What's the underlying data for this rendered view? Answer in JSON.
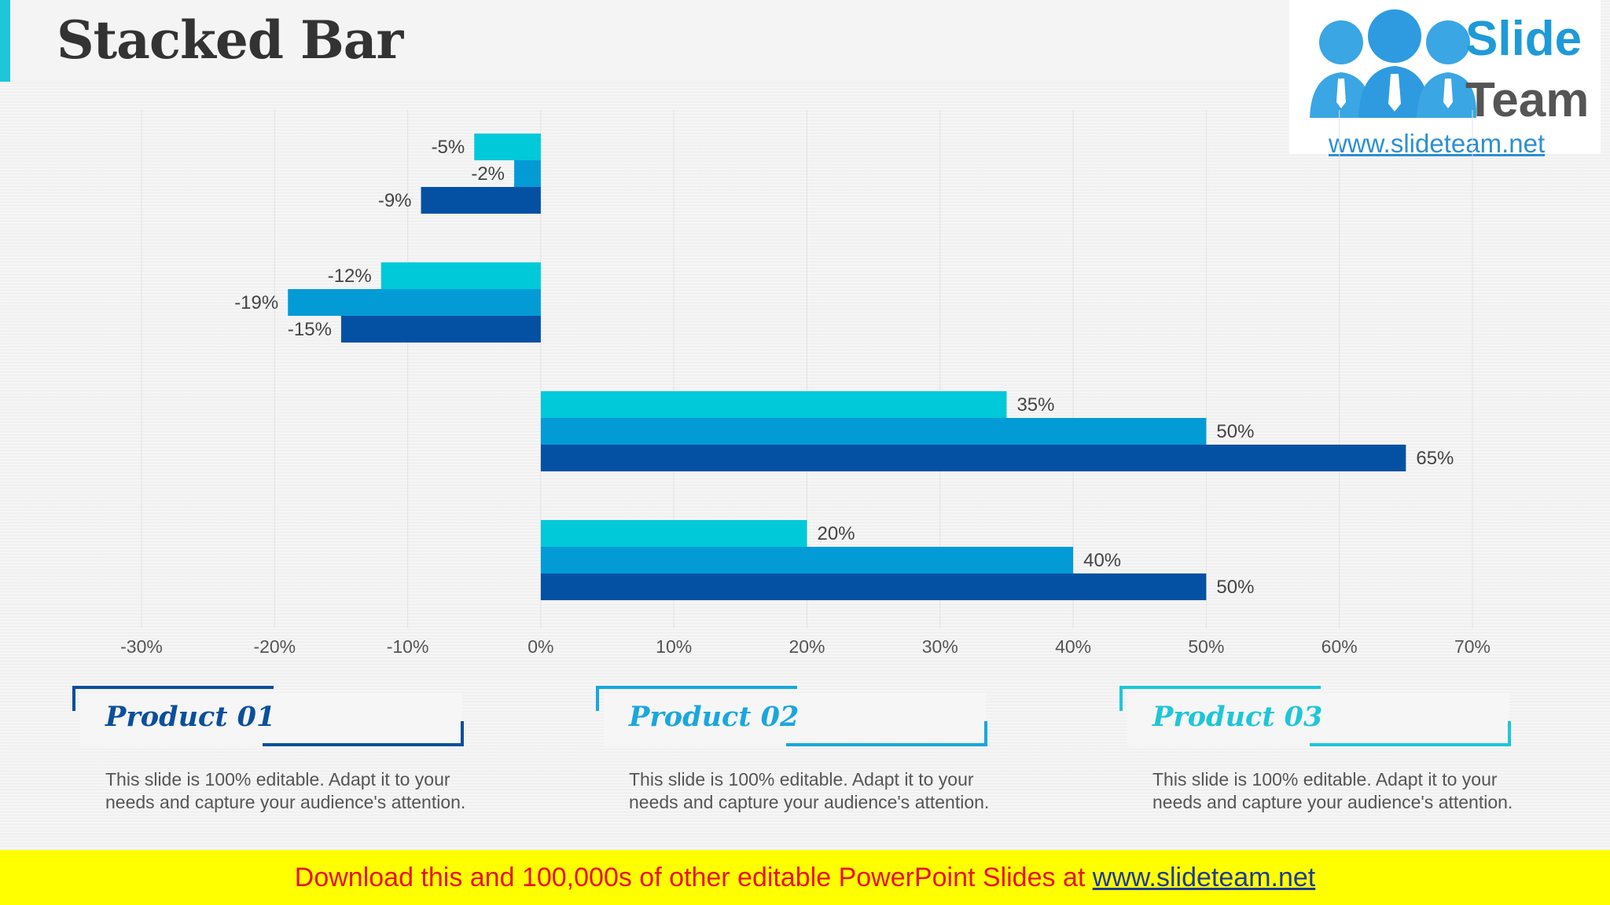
{
  "title": "Stacked Bar",
  "logo": {
    "word1": "Slide",
    "word2": "Team",
    "url": "www.slideteam.net"
  },
  "chart_data": {
    "type": "bar",
    "orientation": "horizontal",
    "categories": [
      "",
      "",
      "",
      ""
    ],
    "series": [
      {
        "values": [
          -5,
          -12,
          35,
          20
        ],
        "color": "#00c9d9",
        "labels": [
          "-5%",
          "-12%",
          "35%",
          "20%"
        ]
      },
      {
        "values": [
          -2,
          -19,
          50,
          40
        ],
        "color": "#039bd6",
        "labels": [
          "-2%",
          "-19%",
          "50%",
          "40%"
        ]
      },
      {
        "values": [
          -9,
          -15,
          65,
          50
        ],
        "color": "#0451a3",
        "labels": [
          "-9%",
          "-15%",
          "65%",
          "50%"
        ]
      }
    ],
    "xlim": [
      -30,
      70
    ],
    "x_ticks": [
      "-30%",
      "-20%",
      "-10%",
      "0%",
      "10%",
      "20%",
      "30%",
      "40%",
      "50%",
      "60%",
      "70%"
    ],
    "grid": true,
    "legend": "none"
  },
  "products": [
    {
      "title": "Product 01",
      "color": "#0b4f9c",
      "text": "This slide is 100% editable. Adapt it to your needs and capture your audience's attention."
    },
    {
      "title": "Product 02",
      "color": "#19a7dd",
      "text": "This slide is 100% editable. Adapt it to your needs and capture your audience's attention."
    },
    {
      "title": "Product 03",
      "color": "#1ec6d8",
      "text": "This slide is 100% editable. Adapt it to your needs and capture your audience's attention."
    }
  ],
  "banner": {
    "text": "Download this and 100,000s of other editable PowerPoint Slides at ",
    "link": "www.slideteam.net"
  }
}
